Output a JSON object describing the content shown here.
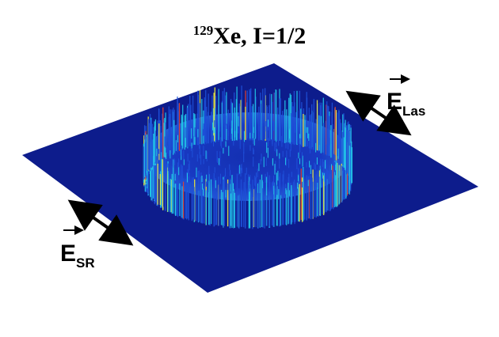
{
  "title": {
    "isotope_mass": "129",
    "text": "Xe, I=1/2"
  },
  "field_labels": {
    "laser": {
      "letter": "E",
      "subscript": "Las"
    },
    "scattered": {
      "letter": "E",
      "subscript": "SR"
    }
  },
  "colors": {
    "background": "#ffffff",
    "plane": "#0d1c8c",
    "ring_low": "#1e4fd8",
    "ring_mid": "#22c6e8",
    "ring_high_yellow": "#f2ee3a",
    "ring_high_red": "#e8402a",
    "arrow": "#000000"
  },
  "icons": {
    "laser_polarization": "double-headed-arrow-icon",
    "scattered_polarization": "double-headed-arrow-icon",
    "vector_mark": "vector-arrow-icon"
  }
}
